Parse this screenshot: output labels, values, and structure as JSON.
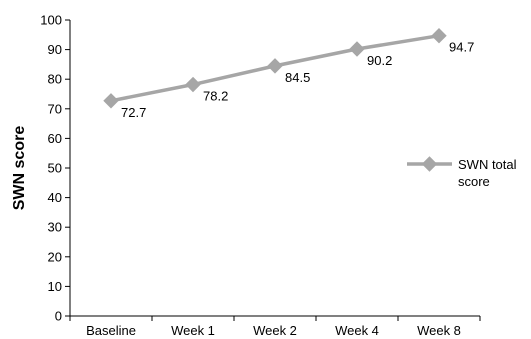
{
  "chart_data": {
    "type": "line",
    "title": "",
    "xlabel": "",
    "ylabel": "SWN score",
    "categories": [
      "Baseline",
      "Week 1",
      "Week 2",
      "Week 4",
      "Week 8"
    ],
    "series": [
      {
        "name": "SWN total score",
        "name_lines": [
          "SWN total",
          "score"
        ],
        "values": [
          72.7,
          78.2,
          84.5,
          90.2,
          94.7
        ],
        "value_labels": [
          "72.7",
          "78.2",
          "84.5",
          "90.2",
          "94.7"
        ],
        "color": "#a6a6a6",
        "marker": "diamond"
      }
    ],
    "ylim": [
      0,
      100
    ],
    "yticks": [
      0,
      10,
      20,
      30,
      40,
      50,
      60,
      70,
      80,
      90,
      100
    ],
    "ytick_labels": [
      "0",
      "10",
      "20",
      "30",
      "40",
      "50",
      "60",
      "70",
      "80",
      "90",
      "100"
    ],
    "grid": false,
    "legend": "right",
    "axis_color": "#000000"
  }
}
